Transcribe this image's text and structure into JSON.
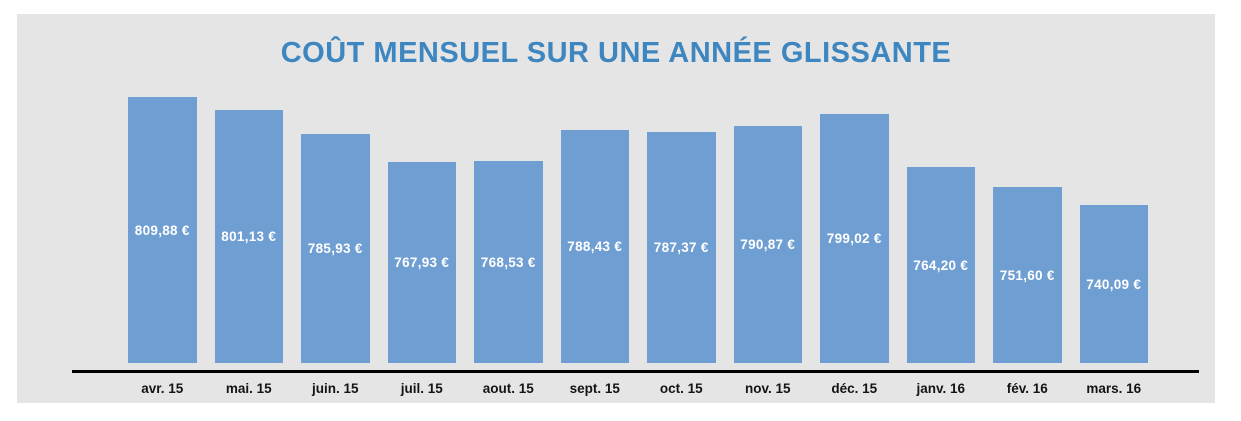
{
  "title": "COÛT MENSUEL SUR UNE ANNÉE GLISSANTE",
  "colors": {
    "title": "#3e86c0",
    "bar": "#6f9ed3",
    "panel_background": "#e5e5e5",
    "page_background": "#ffffff",
    "value_label": "#ffffff",
    "axis_label": "#141414",
    "axis_line": "#000000"
  },
  "chart_data": {
    "type": "bar",
    "title": "COÛT MENSUEL SUR UNE ANNÉE GLISSANTE",
    "categories": [
      "avr. 15",
      "mai. 15",
      "juin. 15",
      "juil. 15",
      "aout. 15",
      "sept. 15",
      "oct. 15",
      "nov. 15",
      "déc. 15",
      "janv. 16",
      "fév. 16",
      "mars. 16"
    ],
    "values": [
      809.88,
      801.13,
      785.93,
      767.93,
      768.53,
      788.43,
      787.37,
      790.87,
      799.02,
      764.2,
      751.6,
      740.09
    ],
    "value_labels": [
      "809,88 €",
      "801,13 €",
      "785,93 €",
      "767,93 €",
      "768,53 €",
      "788,43 €",
      "787,37 €",
      "790,87 €",
      "799,02 €",
      "764,20 €",
      "751,60 €",
      "740,09 €"
    ],
    "xlabel": "",
    "ylabel": "",
    "ylim": [
      638,
      820
    ],
    "grid": false,
    "legend": false,
    "value_label_position": "centered-inside-bar",
    "unit": "€"
  }
}
